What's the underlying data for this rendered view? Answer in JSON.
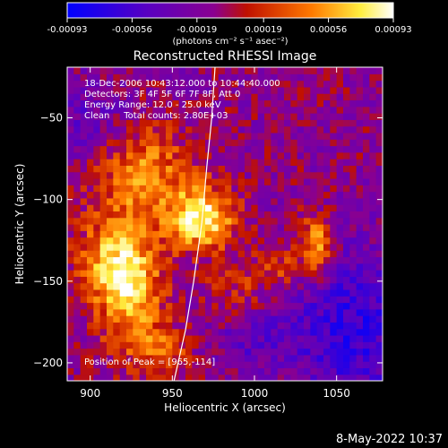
{
  "timestamp": "8-May-2022 10:37",
  "colorbar": {
    "tick_labels": [
      "-0.00093",
      "-0.00056",
      "-0.00019",
      "0.00019",
      "0.00056",
      "0.00093"
    ],
    "tick_values": [
      -0.00093,
      -0.00056,
      -0.00019,
      0.00019,
      0.00056,
      0.00093
    ],
    "range": [
      -0.00093,
      0.00093
    ],
    "units_label": "(photons cm⁻² s⁻¹ asec⁻²)",
    "colors": [
      "#0000ff",
      "#6a00b0",
      "#8a00a0",
      "#c81a00",
      "#ff7a00",
      "#ffff66",
      "#ffffff"
    ]
  },
  "chart_data": {
    "type": "heatmap",
    "title": "Reconstructed RHESSI Image",
    "xlabel": "Heliocentric X (arcsec)",
    "ylabel": "Heliocentric Y (arcsec)",
    "xlim": [
      886,
      1078
    ],
    "ylim": [
      -211,
      -19
    ],
    "x_ticks": [
      900,
      950,
      1000,
      1050
    ],
    "y_ticks": [
      -50,
      -100,
      -150,
      -200
    ],
    "annotations": [
      "18-Dec-2006 10:43:12.000 to 10:44:40.000",
      "Detectors: 3F 4F 5F 6F 7F 8F, Att 0",
      "Energy Range: 12.0 - 25.0 keV",
      "Clean     Total counts: 2.80E+03"
    ],
    "peak_label": "Position of Peak = [965,-114]",
    "peak": [
      965,
      -114
    ],
    "limb_curve": [
      [
        951,
        -211
      ],
      [
        958,
        -180
      ],
      [
        963,
        -150
      ],
      [
        968,
        -114
      ],
      [
        971,
        -80
      ],
      [
        974,
        -50
      ],
      [
        976,
        -19
      ]
    ],
    "bright_regions": [
      {
        "x": 968,
        "y": -112,
        "value": 0.00093,
        "sx": 14,
        "sy": 13
      },
      {
        "x": 932,
        "y": -85,
        "value": 0.00062,
        "sx": 22,
        "sy": 22
      },
      {
        "x": 915,
        "y": -138,
        "value": 0.00072,
        "sx": 16,
        "sy": 18
      },
      {
        "x": 925,
        "y": -165,
        "value": 0.0006,
        "sx": 14,
        "sy": 22
      },
      {
        "x": 1038,
        "y": -128,
        "value": 0.0007,
        "sx": 7,
        "sy": 14
      },
      {
        "x": 1015,
        "y": -140,
        "value": 0.00038,
        "sx": 10,
        "sy": 10
      },
      {
        "x": 990,
        "y": -160,
        "value": 0.00035,
        "sx": 14,
        "sy": 14
      },
      {
        "x": 945,
        "y": -195,
        "value": 0.0004,
        "sx": 12,
        "sy": 12
      }
    ],
    "dark_regions": [
      {
        "x": 1060,
        "y": -180,
        "value": -0.00055,
        "sx": 25,
        "sy": 35
      },
      {
        "x": 1000,
        "y": -180,
        "value": -0.00035,
        "sx": 18,
        "sy": 16
      },
      {
        "x": 900,
        "y": -55,
        "value": -0.0003,
        "sx": 18,
        "sy": 18
      }
    ]
  }
}
